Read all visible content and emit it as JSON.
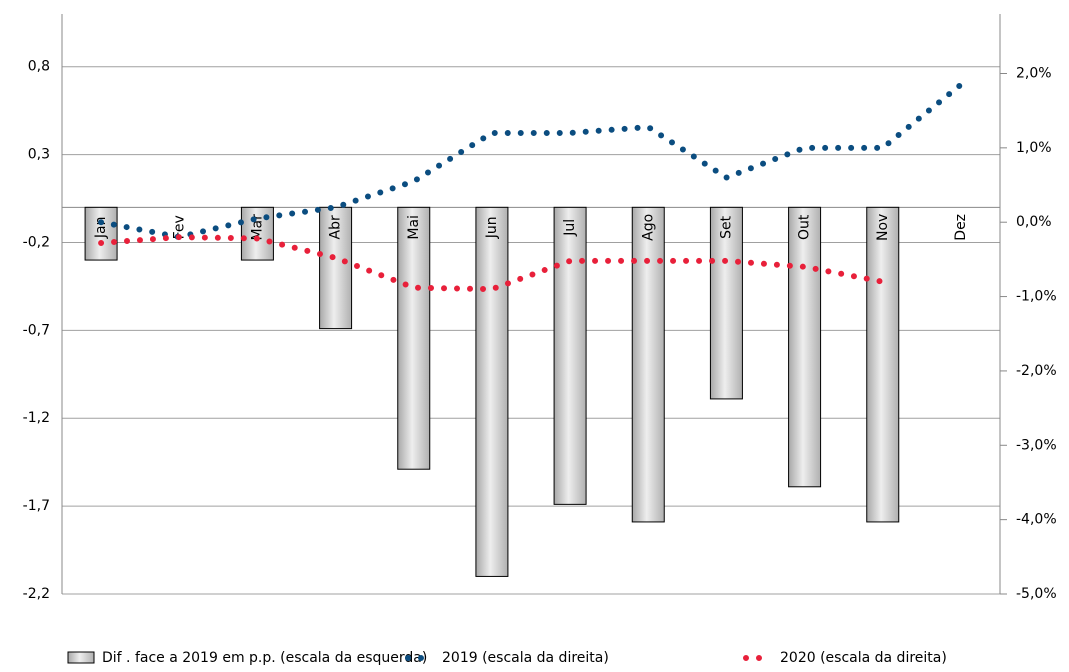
{
  "chart_data": {
    "type": "bar-line",
    "categories": [
      "Jan",
      "Fev",
      "Mar",
      "Abr",
      "Mai",
      "Jun",
      "Jul",
      "Ago",
      "Set",
      "Out",
      "Nov",
      "Dez"
    ],
    "series": [
      {
        "name": "Dif . face a 2019 em p.p. (escala da esquerda)",
        "type": "bar",
        "color": "#d4d4d4",
        "values": [
          -0.3,
          null,
          -0.3,
          -0.69,
          -1.49,
          -2.1,
          -1.69,
          -1.79,
          -1.09,
          -1.59,
          -1.79,
          null
        ]
      },
      {
        "name": "2019 (escala da direita)",
        "type": "dotted-line",
        "axis": "y2",
        "color": "#0b4d80",
        "values": [
          0.0,
          -0.2,
          0.05,
          0.2,
          0.55,
          1.2,
          1.2,
          1.28,
          0.6,
          1.0,
          1.0,
          1.85
        ]
      },
      {
        "name": "2020 (escala da direita)",
        "type": "dotted-line",
        "axis": "y2",
        "color": "#e8203a",
        "values": [
          -0.28,
          -0.2,
          -0.22,
          -0.48,
          -0.88,
          -0.9,
          -0.52,
          -0.52,
          -0.52,
          -0.6,
          -0.8,
          null
        ]
      }
    ],
    "ylim": [
      -2.2,
      1.1
    ],
    "yticks": [
      {
        "value": 0.8,
        "label": "0,8"
      },
      {
        "value": 0.3,
        "label": "0,3"
      },
      {
        "value": -0.2,
        "label": "-0,2"
      },
      {
        "value": -0.7,
        "label": "-0,7"
      },
      {
        "value": -1.2,
        "label": "-1,2"
      },
      {
        "value": -1.7,
        "label": "-1,7"
      },
      {
        "value": -2.2,
        "label": "-2,2"
      }
    ],
    "y2lim": [
      -5,
      2.8
    ],
    "y2ticks": [
      {
        "value": 2,
        "label": "2,0%"
      },
      {
        "value": 1,
        "label": "1,0%"
      },
      {
        "value": 0,
        "label": "0,0%"
      },
      {
        "value": -1,
        "label": "-1,0%"
      },
      {
        "value": -2,
        "label": "-2,0%"
      },
      {
        "value": -3,
        "label": "-3,0%"
      },
      {
        "value": -4,
        "label": "-4,0%"
      },
      {
        "value": -5,
        "label": "-5,0%"
      }
    ],
    "grid": true,
    "legend": "bottom"
  }
}
